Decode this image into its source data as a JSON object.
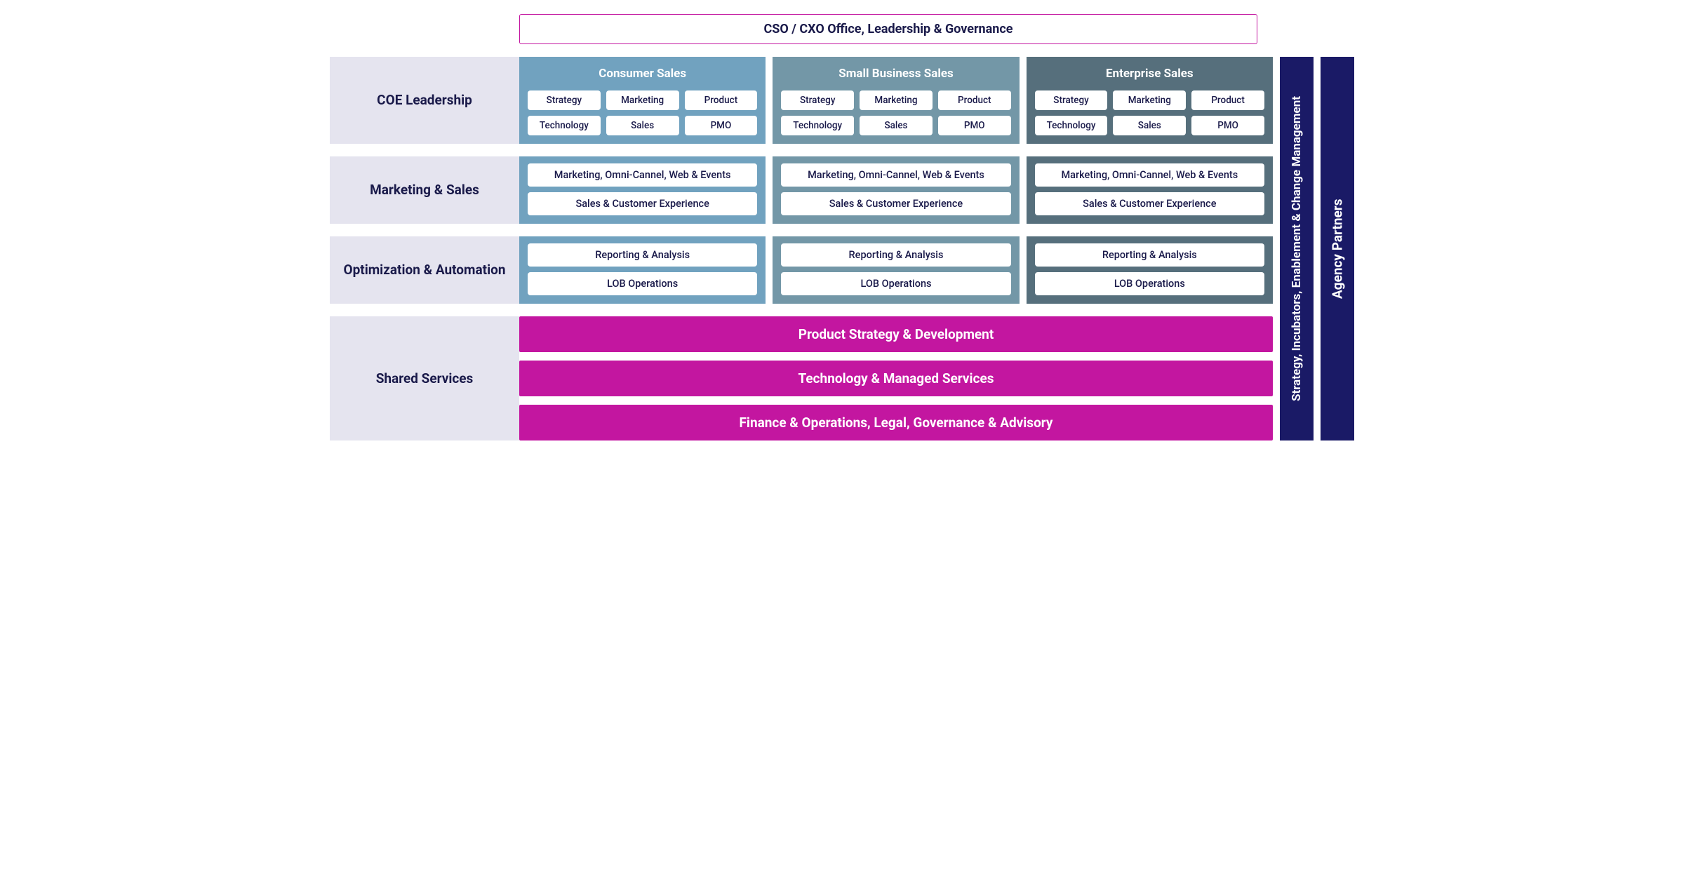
{
  "colors": {
    "header_border": "#c316a0",
    "header_text": "#1a1a4a",
    "row_label_bg": "#e5e4ef",
    "row_label_text": "#1a1a4a",
    "col1_bg": "#71a2bf",
    "col2_bg": "#7397a7",
    "col3_bg": "#566f7c",
    "chip_text": "#1a1a4a",
    "shared_bg": "#c316a0",
    "shared_text": "#ffffff",
    "vert1_bg": "#1a1a66",
    "vert2_bg": "#1a1a66",
    "shared_label_bg": "#e5e4ef"
  },
  "header": {
    "title": "CSO / CXO Office, Leadership & Governance"
  },
  "columns": [
    {
      "title": "Consumer Sales"
    },
    {
      "title": "Small Business Sales"
    },
    {
      "title": "Enterprise Sales"
    }
  ],
  "rows": {
    "coe": {
      "label": "COE Leadership",
      "chips": [
        "Strategy",
        "Marketing",
        "Product",
        "Technology",
        "Sales",
        "PMO"
      ]
    },
    "marketing": {
      "label": "Marketing & Sales",
      "bars": [
        "Marketing, Omni-Cannel, Web & Events",
        "Sales & Customer Experience"
      ]
    },
    "optimization": {
      "label": "Optimization & Automation",
      "bars": [
        "Reporting & Analysis",
        "LOB Operations"
      ]
    },
    "shared": {
      "label": "Shared Services",
      "bars": [
        "Product Strategy & Development",
        "Technology & Managed Services",
        "Finance & Operations, Legal, Governance & Advisory"
      ]
    }
  },
  "vertical": {
    "bar1": {
      "label": "Strategy, Incubators, Enablement & Change Management",
      "fontsize": 17
    },
    "bar2": {
      "label": "Agency Partners",
      "fontsize": 19
    }
  },
  "layout": {
    "vert_bar_width": 48
  }
}
